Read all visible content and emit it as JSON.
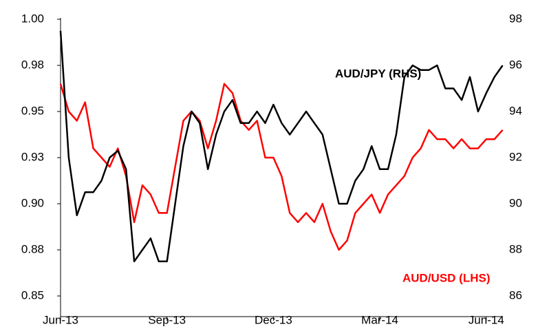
{
  "chart_data": {
    "type": "line",
    "annotations": [
      "AUD/JPY (RHS)",
      "AUD/USD (LHS)"
    ],
    "categories": [
      "Jun-13",
      null,
      null,
      null,
      null,
      null,
      null,
      null,
      null,
      null,
      null,
      null,
      null,
      "Sep-13",
      null,
      null,
      null,
      null,
      null,
      null,
      null,
      null,
      null,
      null,
      null,
      null,
      "Dec-13",
      null,
      null,
      null,
      null,
      null,
      null,
      null,
      null,
      null,
      null,
      null,
      null,
      "Mar-14",
      null,
      null,
      null,
      null,
      null,
      null,
      null,
      null,
      null,
      null,
      null,
      null,
      "Jun-14",
      null,
      null
    ],
    "series": [
      {
        "name": "AUD/USD (LHS)",
        "color": "#ff0000",
        "axis": "y",
        "values": [
          0.965,
          0.95,
          0.945,
          0.955,
          0.93,
          0.925,
          0.92,
          0.93,
          0.915,
          0.89,
          0.91,
          0.905,
          0.895,
          0.895,
          0.92,
          0.945,
          0.95,
          0.945,
          0.93,
          0.945,
          0.965,
          0.96,
          0.945,
          0.94,
          0.945,
          0.925,
          0.925,
          0.915,
          0.895,
          0.89,
          0.895,
          0.89,
          0.9,
          0.885,
          0.875,
          0.88,
          0.895,
          0.9,
          0.905,
          0.895,
          0.905,
          0.91,
          0.915,
          0.925,
          0.93,
          0.94,
          0.935,
          0.935,
          0.93,
          0.935,
          0.93,
          0.93,
          0.935,
          0.935,
          0.94
        ]
      },
      {
        "name": "AUD/JPY (RHS)",
        "color": "#000000",
        "axis": "y2",
        "values": [
          97.5,
          92,
          89.5,
          90.5,
          90.5,
          91,
          92,
          92.3,
          91.5,
          87.5,
          88,
          88.5,
          87.5,
          87.5,
          90,
          92.5,
          94,
          93.5,
          91.5,
          93,
          94,
          94.5,
          93.5,
          93.5,
          94,
          93.5,
          94.3,
          93.5,
          93,
          93.5,
          94,
          93.5,
          93,
          91.5,
          90,
          90,
          91,
          91.5,
          92.5,
          91.5,
          91.5,
          93,
          95.5,
          96,
          95.8,
          95.8,
          96,
          95,
          95,
          94.5,
          95.5,
          94,
          94.8,
          95.5,
          96
        ]
      }
    ],
    "ylim": [
      0.85,
      1.0
    ],
    "yticks": [
      {
        "value": 0.85,
        "label": "0.85"
      },
      {
        "value": 0.875,
        "label": "0.88"
      },
      {
        "value": 0.9,
        "label": "0.90"
      },
      {
        "value": 0.925,
        "label": "0.93"
      },
      {
        "value": 0.95,
        "label": "0.95"
      },
      {
        "value": 0.975,
        "label": "0.98"
      },
      {
        "value": 1.0,
        "label": "1.00"
      }
    ],
    "y2lim": [
      86,
      98
    ],
    "y2ticks": [
      86,
      88,
      90,
      92,
      94,
      96,
      98
    ],
    "grid": false
  }
}
